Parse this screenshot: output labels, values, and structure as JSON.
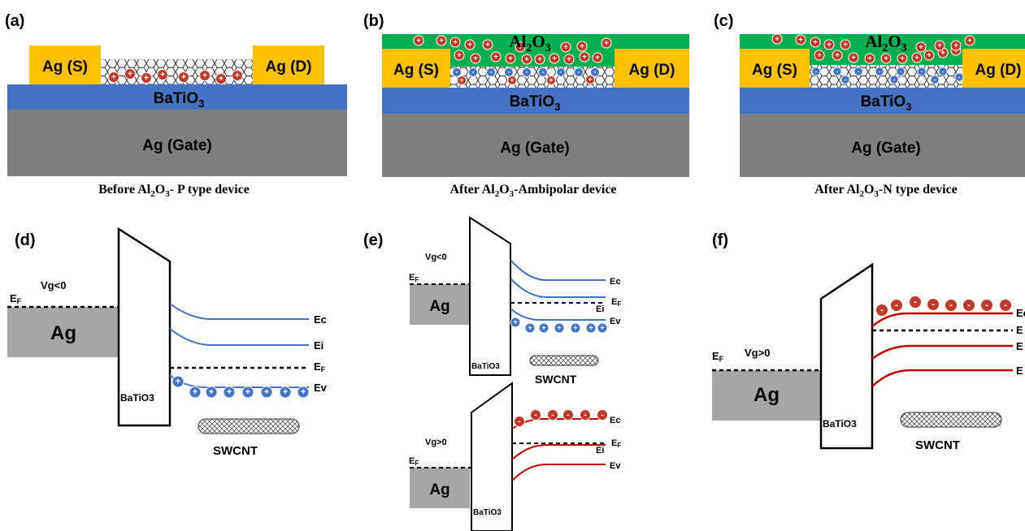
{
  "colors": {
    "electrode": "#ffc000",
    "dielectric": "#4472c4",
    "gate": "#7f7f7f",
    "al2o3": "#00b050",
    "hole": "#c0392b",
    "electron_band": "#4472c4",
    "red_band": "#c00000",
    "metal": "#a6a6a6"
  },
  "panels_top": [
    {
      "id": "a",
      "label": "(a)",
      "source": "Ag (S)",
      "drain": "Ag (D)",
      "dielectric": "BaTiO",
      "dielectric_sub": "3",
      "gate": "Ag (Gate)",
      "caption_pre": "Before Al",
      "caption_s1": "2",
      "caption_mid": "O",
      "caption_s2": "3",
      "caption_post": "- P type device"
    },
    {
      "id": "b",
      "label": "(b)",
      "source": "Ag (S)",
      "drain": "Ag (D)",
      "dielectric": "BaTiO",
      "dielectric_sub": "3",
      "gate": "Ag (Gate)",
      "passivation": "Al",
      "passivation_s1": "2",
      "passivation_mid": "O",
      "passivation_s2": "3",
      "caption_pre": "After Al",
      "caption_s1": "2",
      "caption_mid": "O",
      "caption_s2": "3",
      "caption_post": "-Ambipolar device"
    },
    {
      "id": "c",
      "label": "(c)",
      "source": "Ag (S)",
      "drain": "Ag (D)",
      "dielectric": "BaTiO",
      "dielectric_sub": "3",
      "gate": "Ag (Gate)",
      "passivation": "Al",
      "passivation_s1": "2",
      "passivation_mid": "O",
      "passivation_s2": "3",
      "caption_pre": "After Al",
      "caption_s1": "2",
      "caption_mid": "O",
      "caption_s2": "3",
      "caption_post": "-N type device"
    }
  ],
  "panel_d": {
    "label": "(d)",
    "metal": "Ag",
    "fermi": "E",
    "fermi_sub": "F",
    "bias": "Vg<0",
    "dielectric": "BaTiO3",
    "channel": "SWCNT",
    "bands": [
      "Ec",
      "Ei",
      "EF",
      "Ev"
    ],
    "ef_main": "E",
    "ef_sub": "F",
    "carrier_sign": "+"
  },
  "panel_e": {
    "label": "(e)",
    "top": {
      "metal": "Ag",
      "fermi": "E",
      "fermi_sub": "F",
      "bias": "Vg<0",
      "dielectric": "BaTiO3",
      "channel": "SWCNT",
      "ec": "Ec",
      "ef_main": "E",
      "ef_sub": "F",
      "ei": "Ei",
      "ev": "Ev"
    },
    "bottom": {
      "metal": "Ag",
      "fermi": "E",
      "fermi_sub": "F",
      "bias": "Vg>0",
      "dielectric": "BaTiO3",
      "ec": "Ec",
      "ef_main": "E",
      "ef_sub": "F",
      "ei": "Ei",
      "ev": "Ev"
    }
  },
  "panel_f": {
    "label": "(f)",
    "metal": "Ag",
    "fermi": "E",
    "fermi_sub": "F",
    "bias": "Vg>0",
    "dielectric": "BaTiO3",
    "channel": "SWCNT",
    "band_labels": [
      "Ec",
      "E",
      "E",
      "E"
    ]
  }
}
